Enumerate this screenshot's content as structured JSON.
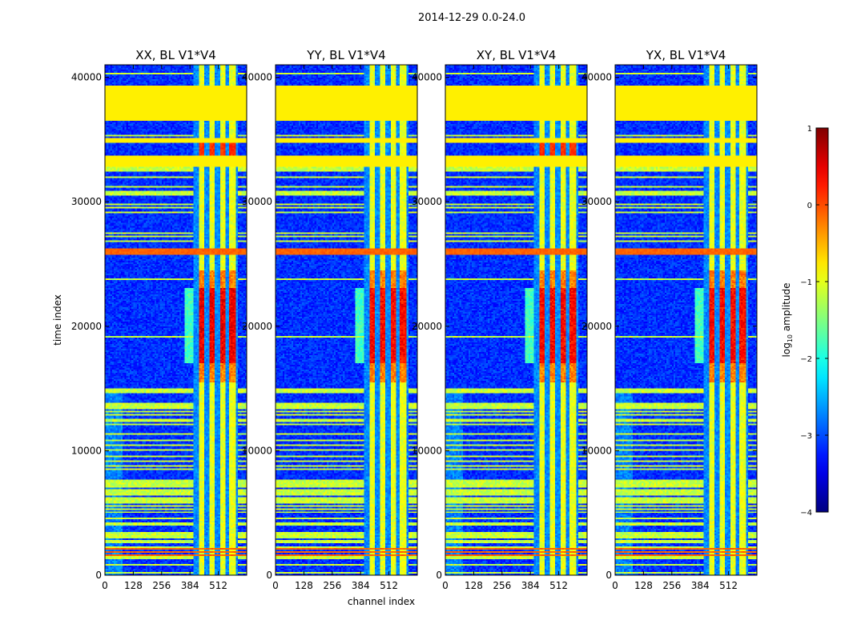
{
  "chart_data": {
    "type": "heatmap",
    "title": "2014-12-29 0.0-24.0",
    "panels": [
      {
        "title": "XX, BL V1*V4"
      },
      {
        "title": "YY, BL V1*V4"
      },
      {
        "title": "XY, BL V1*V4"
      },
      {
        "title": "YX, BL V1*V4"
      }
    ],
    "xlabel": "channel index",
    "ylabel": "time index",
    "xlim": [
      0,
      640
    ],
    "ylim": [
      0,
      41000
    ],
    "xticks": [
      "0",
      "128",
      "256",
      "384",
      "512"
    ],
    "xtick_values": [
      0,
      128,
      256,
      384,
      512
    ],
    "yticks": [
      "0",
      "10000",
      "20000",
      "30000",
      "40000"
    ],
    "ytick_values": [
      0,
      10000,
      20000,
      30000,
      40000
    ],
    "colorbar": {
      "label_prefix": "log",
      "label_sub": "10",
      "label_suffix": " amplitude",
      "range": [
        -4,
        1
      ],
      "ticks": [
        "1",
        "0",
        "−1",
        "−2",
        "−3",
        "−4"
      ],
      "tick_values": [
        1,
        0,
        -1,
        -2,
        -3,
        -4
      ]
    },
    "bright_bands": [
      {
        "start": 36500,
        "end": 39300,
        "value": -0.8
      },
      {
        "start": 34700,
        "end": 35100,
        "value": -0.8
      },
      {
        "start": 32800,
        "end": 33700,
        "value": -0.8
      }
    ],
    "flagged_channels": [
      [
        400,
        420
      ],
      [
        450,
        470
      ],
      [
        500,
        520
      ],
      [
        545,
        560
      ],
      [
        590,
        600
      ]
    ],
    "colors": {
      "background": "#ffffff",
      "axis": "#000000"
    }
  }
}
